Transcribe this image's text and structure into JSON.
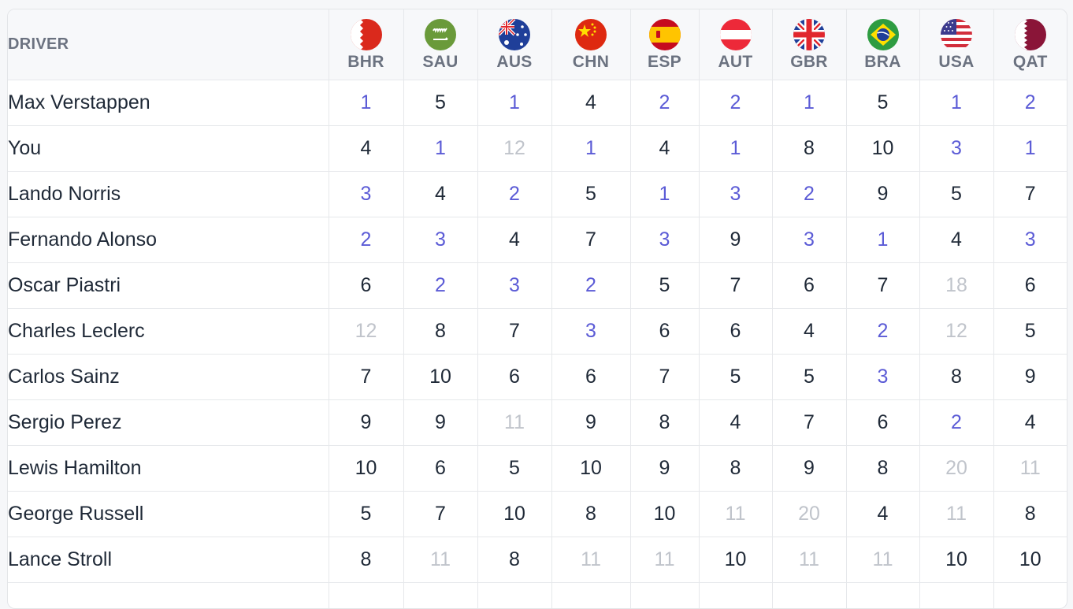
{
  "header": {
    "driver_label": "DRIVER",
    "races": [
      {
        "code": "BHR",
        "flag": "bahrain-flag-icon"
      },
      {
        "code": "SAU",
        "flag": "saudi-arabia-flag-icon"
      },
      {
        "code": "AUS",
        "flag": "australia-flag-icon"
      },
      {
        "code": "CHN",
        "flag": "china-flag-icon"
      },
      {
        "code": "ESP",
        "flag": "spain-flag-icon"
      },
      {
        "code": "AUT",
        "flag": "austria-flag-icon"
      },
      {
        "code": "GBR",
        "flag": "great-britain-flag-icon"
      },
      {
        "code": "BRA",
        "flag": "brazil-flag-icon"
      },
      {
        "code": "USA",
        "flag": "usa-flag-icon"
      },
      {
        "code": "QAT",
        "flag": "qatar-flag-icon"
      }
    ]
  },
  "colors": {
    "podium": "#5b5bd6",
    "outside_points": "#c0c4cb",
    "default": "#1f2937",
    "header_text": "#6b7280"
  },
  "rows": [
    {
      "driver": "Max Verstappen",
      "results": [
        "1",
        "5",
        "1",
        "4",
        "2",
        "2",
        "1",
        "5",
        "1",
        "2"
      ]
    },
    {
      "driver": "You",
      "results": [
        "4",
        "1",
        "12",
        "1",
        "4",
        "1",
        "8",
        "10",
        "3",
        "1"
      ]
    },
    {
      "driver": "Lando Norris",
      "results": [
        "3",
        "4",
        "2",
        "5",
        "1",
        "3",
        "2",
        "9",
        "5",
        "7"
      ]
    },
    {
      "driver": "Fernando Alonso",
      "results": [
        "2",
        "3",
        "4",
        "7",
        "3",
        "9",
        "3",
        "1",
        "4",
        "3"
      ]
    },
    {
      "driver": "Oscar Piastri",
      "results": [
        "6",
        "2",
        "3",
        "2",
        "5",
        "7",
        "6",
        "7",
        "18",
        "6"
      ]
    },
    {
      "driver": "Charles Leclerc",
      "results": [
        "12",
        "8",
        "7",
        "3",
        "6",
        "6",
        "4",
        "2",
        "12",
        "5"
      ]
    },
    {
      "driver": "Carlos Sainz",
      "results": [
        "7",
        "10",
        "6",
        "6",
        "7",
        "5",
        "5",
        "3",
        "8",
        "9"
      ]
    },
    {
      "driver": "Sergio Perez",
      "results": [
        "9",
        "9",
        "11",
        "9",
        "8",
        "4",
        "7",
        "6",
        "2",
        "4"
      ]
    },
    {
      "driver": "Lewis Hamilton",
      "results": [
        "10",
        "6",
        "5",
        "10",
        "9",
        "8",
        "9",
        "8",
        "20",
        "11"
      ]
    },
    {
      "driver": "George Russell",
      "results": [
        "5",
        "7",
        "10",
        "8",
        "10",
        "11",
        "20",
        "4",
        "11",
        "8"
      ]
    },
    {
      "driver": "Lance Stroll",
      "results": [
        "8",
        "11",
        "8",
        "11",
        "11",
        "10",
        "11",
        "11",
        "10",
        "10"
      ]
    },
    {
      "driver": "",
      "results": [
        "",
        "",
        "",
        "",
        "",
        "",
        "",
        "",
        "",
        ""
      ]
    }
  ]
}
